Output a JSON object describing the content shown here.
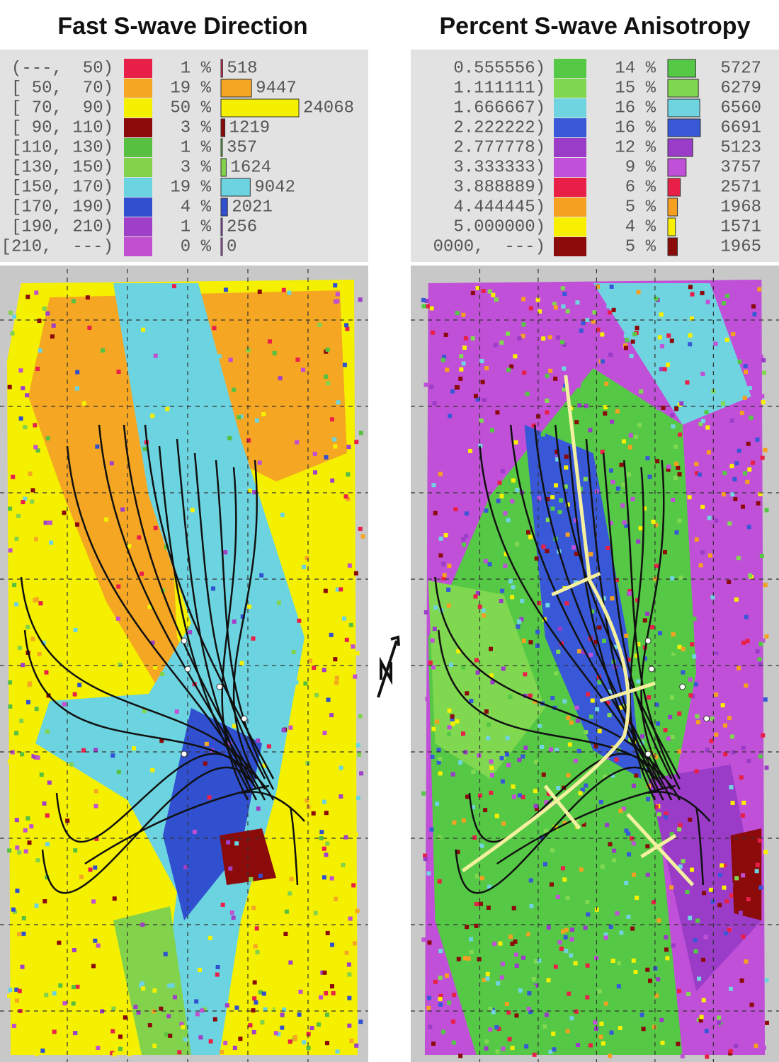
{
  "panels": [
    {
      "title": "Fast S-wave Direction",
      "rows": [
        {
          "label": "(---,  50)",
          "color": "#e8204a",
          "percent": "1 %",
          "count": 518
        },
        {
          "label": "[ 50,  70)",
          "color": "#f5a623",
          "percent": "19 %",
          "count": 9447
        },
        {
          "label": "[ 70,  90)",
          "color": "#f5f000",
          "percent": "50 %",
          "count": 24068
        },
        {
          "label": "[ 90, 110)",
          "color": "#8b0a0a",
          "percent": "3 %",
          "count": 1219
        },
        {
          "label": "[110, 130)",
          "color": "#58c040",
          "percent": "1 %",
          "count": 357
        },
        {
          "label": "[130, 150)",
          "color": "#82d24c",
          "percent": "3 %",
          "count": 1624
        },
        {
          "label": "[150, 170)",
          "color": "#6cd4e0",
          "percent": "19 %",
          "count": 9042
        },
        {
          "label": "[170, 190)",
          "color": "#3050d0",
          "percent": "4 %",
          "count": 2021
        },
        {
          "label": "[190, 210)",
          "color": "#a040c8",
          "percent": "1 %",
          "count": 256
        },
        {
          "label": "[210,  ---)",
          "color": "#c050d0",
          "percent": "0 %",
          "count": 0
        }
      ]
    },
    {
      "title": "Percent S-wave Anisotropy",
      "rows": [
        {
          "label": "0.555556)",
          "color": "#55c845",
          "percent": "14 %",
          "count": 5727
        },
        {
          "label": "1.111111)",
          "color": "#80d850",
          "percent": "15 %",
          "count": 6279
        },
        {
          "label": "1.666667)",
          "color": "#70d4e0",
          "percent": "16 %",
          "count": 6560
        },
        {
          "label": "2.222222)",
          "color": "#3858d8",
          "percent": "16 %",
          "count": 6691
        },
        {
          "label": "2.777778)",
          "color": "#9a3cc8",
          "percent": "12 %",
          "count": 5123
        },
        {
          "label": "3.333333)",
          "color": "#c050d8",
          "percent": "9 %",
          "count": 3757
        },
        {
          "label": "3.888889)",
          "color": "#e82048",
          "percent": "6 %",
          "count": 2571
        },
        {
          "label": "4.444445)",
          "color": "#f5a020",
          "percent": "5 %",
          "count": 1968
        },
        {
          "label": "5.000000)",
          "color": "#f8f000",
          "percent": "4 %",
          "count": 1571
        },
        {
          "label": "0000,  ---)",
          "color": "#8b0a0a",
          "percent": "5 %",
          "count": 1965
        }
      ]
    }
  ]
}
